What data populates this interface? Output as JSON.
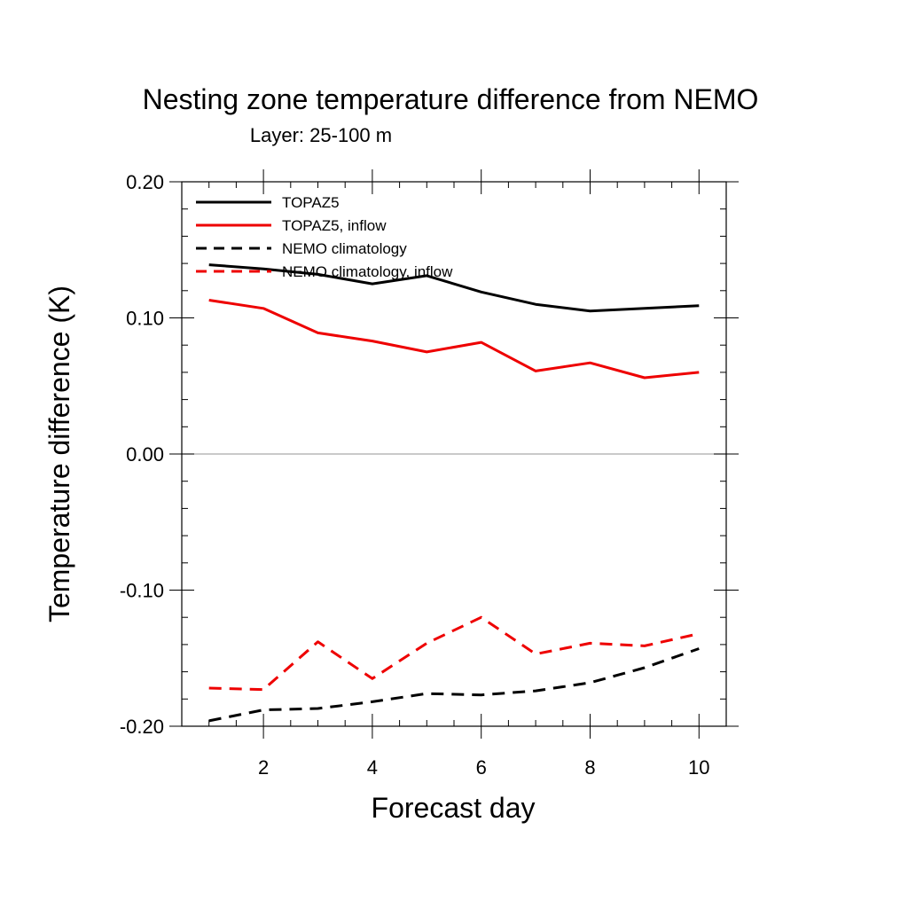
{
  "chart_data": {
    "type": "line",
    "title": "Nesting zone temperature difference from NEMO",
    "subtitle": "Layer: 25-100 m",
    "xlabel": "Forecast day",
    "ylabel": "Temperature difference (K)",
    "xlim": [
      0.5,
      10.5
    ],
    "ylim": [
      -0.2,
      0.2
    ],
    "x_ticks": [
      2,
      4,
      6,
      8,
      10
    ],
    "x_tick_labels": [
      "2",
      "4",
      "6",
      "8",
      "10"
    ],
    "y_ticks": [
      -0.2,
      -0.1,
      0.0,
      0.1,
      0.2
    ],
    "y_tick_labels": [
      "-0.20",
      "-0.10",
      "0.00",
      "0.10",
      "0.20"
    ],
    "zero_line": true,
    "legend_position": "top-left",
    "x": [
      1,
      2,
      3,
      4,
      5,
      6,
      7,
      8,
      9,
      10
    ],
    "series": [
      {
        "name": "TOPAZ5",
        "color": "#000000",
        "dash": "solid",
        "values": [
          0.139,
          0.136,
          0.132,
          0.125,
          0.131,
          0.119,
          0.11,
          0.105,
          0.107,
          0.109
        ]
      },
      {
        "name": "TOPAZ5, inflow",
        "color": "#ee0000",
        "dash": "solid",
        "values": [
          0.113,
          0.107,
          0.089,
          0.083,
          0.075,
          0.082,
          0.061,
          0.067,
          0.056,
          0.06
        ]
      },
      {
        "name": "NEMO climatology",
        "color": "#000000",
        "dash": "dashed",
        "values": [
          -0.196,
          -0.188,
          -0.187,
          -0.182,
          -0.176,
          -0.177,
          -0.174,
          -0.168,
          -0.157,
          -0.143
        ]
      },
      {
        "name": "NEMO climatology, inflow",
        "color": "#ee0000",
        "dash": "dashed",
        "values": [
          -0.172,
          -0.173,
          -0.138,
          -0.165,
          -0.139,
          -0.12,
          -0.147,
          -0.139,
          -0.141,
          -0.132
        ]
      }
    ]
  }
}
